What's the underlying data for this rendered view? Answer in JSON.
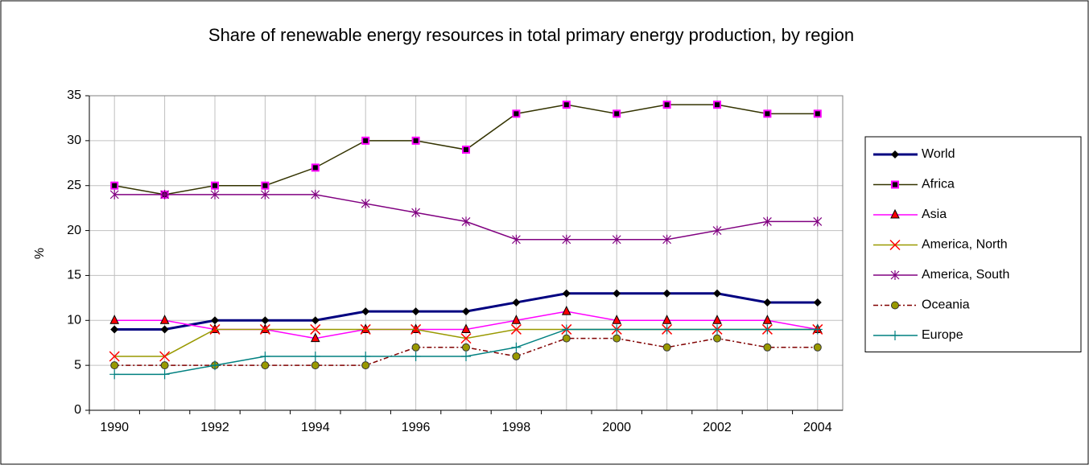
{
  "chart_data": {
    "type": "line",
    "title": "Share of renewable energy resources in total primary energy production, by region",
    "y_label": "%",
    "categories": [
      "1990",
      null,
      "1992",
      null,
      "1994",
      null,
      "1996",
      null,
      "1998",
      null,
      "2000",
      null,
      "2002",
      null,
      "2004"
    ],
    "ylim": [
      0,
      35
    ],
    "yticks": [
      0,
      5,
      10,
      15,
      20,
      25,
      30,
      35
    ],
    "grid": true,
    "legend": "right",
    "series": [
      {
        "name": "World",
        "color": "#000080",
        "marker": "diamond",
        "line_style": "thick",
        "values": [
          9,
          9,
          10,
          10,
          10,
          11,
          11,
          11,
          12,
          13,
          13,
          13,
          13,
          12,
          12
        ]
      },
      {
        "name": "Africa",
        "color": "#333300",
        "marker": "square",
        "marker_color": "#ff00ff",
        "line_style": "solid",
        "values": [
          25,
          24,
          25,
          25,
          27,
          30,
          30,
          29,
          33,
          34,
          33,
          34,
          34,
          33,
          33
        ]
      },
      {
        "name": "Asia",
        "color": "#ff00ff",
        "marker": "triangle",
        "marker_color": "#ff0000",
        "line_style": "solid",
        "values": [
          10,
          10,
          9,
          9,
          8,
          9,
          9,
          9,
          10,
          11,
          10,
          10,
          10,
          10,
          9
        ]
      },
      {
        "name": "America, North",
        "color": "#999900",
        "marker": "x",
        "marker_color": "#ff0000",
        "line_style": "solid",
        "values": [
          6,
          6,
          9,
          9,
          9,
          9,
          9,
          8,
          9,
          9,
          9,
          9,
          9,
          9,
          9
        ]
      },
      {
        "name": "America, South",
        "color": "#800080",
        "marker": "asterisk",
        "line_style": "solid",
        "values": [
          24,
          24,
          24,
          24,
          24,
          23,
          22,
          21,
          19,
          19,
          19,
          19,
          20,
          21,
          21
        ]
      },
      {
        "name": "Oceania",
        "color": "#800000",
        "marker": "circle",
        "marker_color": "#999900",
        "line_style": "dashdot",
        "values": [
          5,
          5,
          5,
          5,
          5,
          5,
          7,
          7,
          6,
          8,
          8,
          7,
          8,
          7,
          7
        ]
      },
      {
        "name": "Europe",
        "color": "#008080",
        "marker": "plus",
        "line_style": "solid",
        "values": [
          4,
          4,
          5,
          6,
          6,
          6,
          6,
          6,
          7,
          9,
          9,
          9,
          9,
          9,
          9
        ]
      }
    ]
  }
}
